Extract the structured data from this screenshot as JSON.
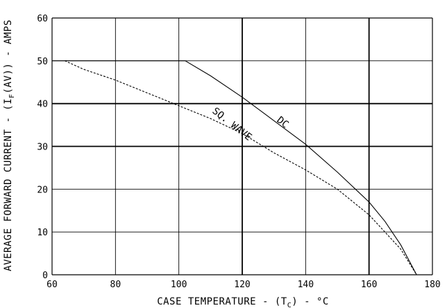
{
  "chart_data": {
    "type": "line",
    "xlim": [
      60,
      180
    ],
    "ylim": [
      0,
      60
    ],
    "x_ticks": [
      60,
      80,
      100,
      120,
      140,
      160,
      180
    ],
    "y_ticks": [
      0,
      10,
      20,
      30,
      40,
      50,
      60
    ],
    "xlabel": "CASE TEMPERATURE - (T",
    "xlabel_sub": "C",
    "xlabel_tail": ") - °C",
    "ylabel": "AVERAGE FORWARD CURRENT - (I",
    "ylabel_sub": "F",
    "ylabel_tail": "(AV)) - AMPS",
    "grid": true,
    "series": [
      {
        "name": "DC",
        "style": "solid",
        "x": [
          60,
          102,
          110,
          120,
          130,
          140,
          150,
          160,
          165,
          170,
          175
        ],
        "y": [
          50,
          50,
          46.5,
          41.5,
          36,
          30.5,
          24,
          17,
          12.5,
          7,
          0
        ]
      },
      {
        "name": "SQ. WAVE",
        "style": "dashed",
        "x": [
          64,
          70,
          80,
          90,
          100,
          110,
          120,
          130,
          140,
          150,
          160,
          170,
          175
        ],
        "y": [
          50,
          48,
          45.5,
          42.5,
          39.5,
          36.5,
          33,
          28.5,
          24.5,
          20,
          14,
          6,
          0
        ]
      }
    ]
  }
}
